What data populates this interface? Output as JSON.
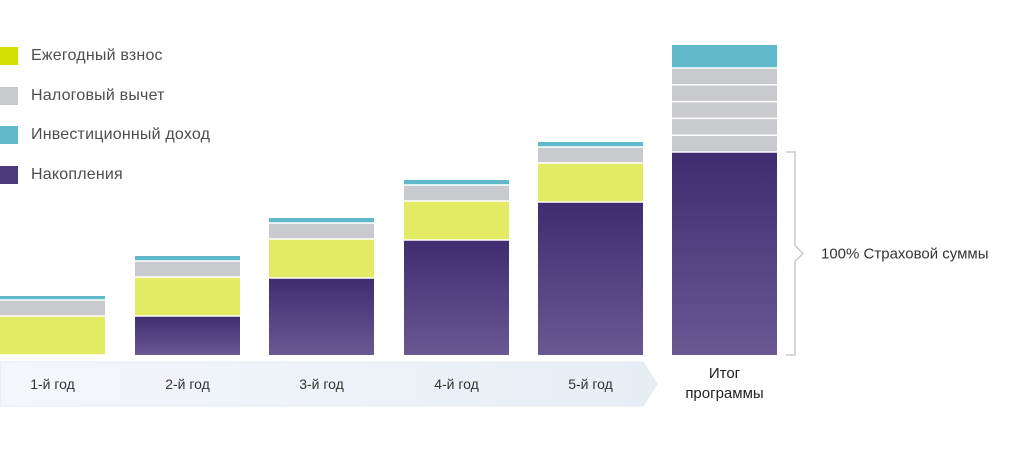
{
  "chart_data": {
    "type": "bar",
    "stacked": true,
    "categories": [
      "1-й год",
      "2-й год",
      "3-й год",
      "4-й год",
      "5-й год",
      "Итог программы"
    ],
    "series": [
      {
        "name": "Накопления",
        "color": "#4a3a7c",
        "values": [
          0,
          39,
          77,
          115,
          153,
          203
        ]
      },
      {
        "name": "Ежегодный взнос",
        "color": "#e3ea63",
        "values": [
          39,
          39,
          39,
          39,
          39,
          0
        ]
      },
      {
        "name": "Налоговый вычет",
        "color": "#c9cacd",
        "values": [
          16,
          16,
          16,
          16,
          16,
          84
        ]
      },
      {
        "name": "Инвестиционный доход",
        "color": "#5fb9cb",
        "values": [
          4,
          5,
          5,
          5,
          5,
          23
        ]
      }
    ],
    "legend": {
      "placement": "top-left",
      "order": [
        "Ежегодный взнос",
        "Налоговый вычет",
        "Инвестиционный доход",
        "Накопления"
      ]
    },
    "annotation": "100% Страховой суммы",
    "title": "",
    "xlabel": "",
    "ylabel": "",
    "ylim": [
      0,
      310
    ],
    "grid": false
  }
}
